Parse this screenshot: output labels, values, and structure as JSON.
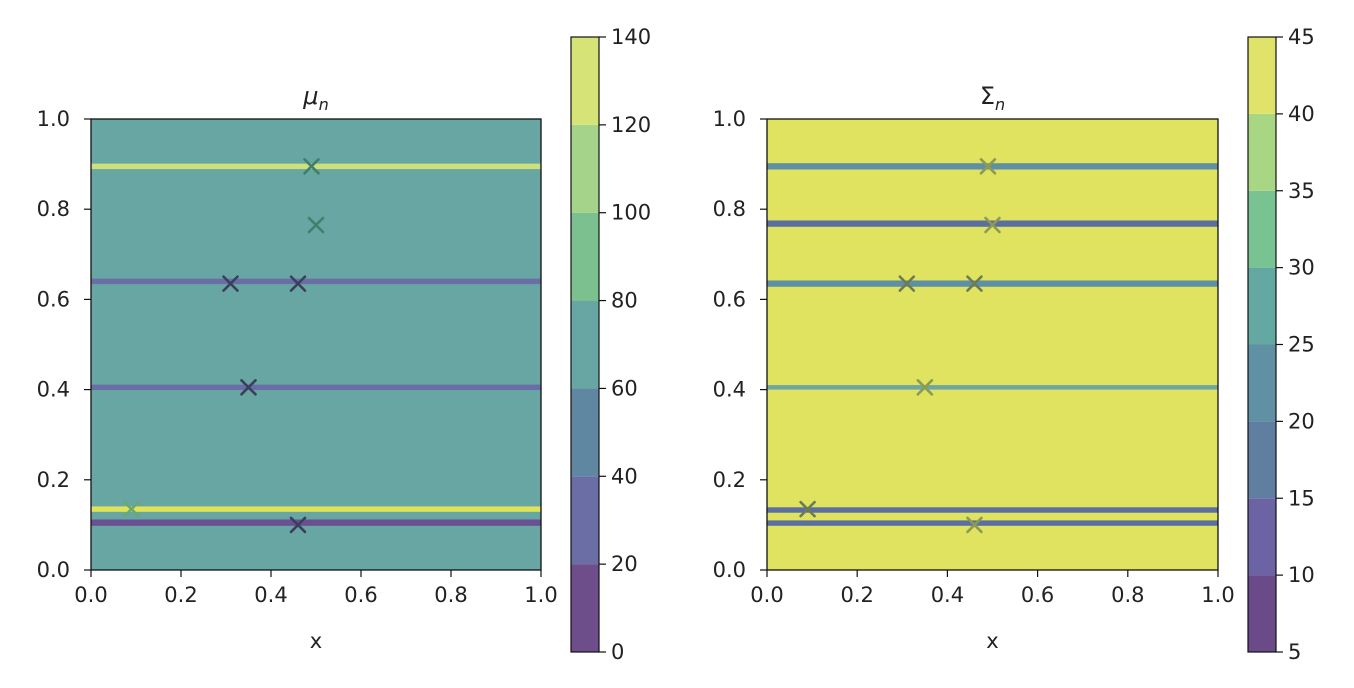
{
  "chart_data": [
    {
      "type": "heatmap",
      "title": "μ",
      "title_subscript": "n",
      "xlabel": "x",
      "ylabel": "",
      "xlim": [
        0.0,
        1.0
      ],
      "ylim": [
        0.0,
        1.0
      ],
      "xticks": [
        "0.0",
        "0.2",
        "0.4",
        "0.6",
        "0.8",
        "1.0"
      ],
      "yticks": [
        "0.0",
        "0.2",
        "0.4",
        "0.6",
        "0.8",
        "1.0"
      ],
      "grid": false,
      "background_color": "#67a6a2",
      "bands": [
        {
          "y_center": 0.895,
          "height": 0.012,
          "color": "#cfe07a"
        },
        {
          "y_center": 0.64,
          "height": 0.012,
          "color": "#6a6ea6"
        },
        {
          "y_center": 0.405,
          "height": 0.012,
          "color": "#6a6ea6"
        },
        {
          "y_center": 0.135,
          "height": 0.012,
          "color": "#e0e35a"
        },
        {
          "y_center": 0.105,
          "height": 0.014,
          "color": "#6a4f93"
        }
      ],
      "points": [
        {
          "x": 0.49,
          "y": 0.895,
          "color": "#3f7f6b"
        },
        {
          "x": 0.5,
          "y": 0.765,
          "color": "#3f7f6b"
        },
        {
          "x": 0.31,
          "y": 0.635,
          "color": "#3a3f5e"
        },
        {
          "x": 0.46,
          "y": 0.635,
          "color": "#3a3f5e"
        },
        {
          "x": 0.35,
          "y": 0.405,
          "color": "#3a3f5e"
        },
        {
          "x": 0.09,
          "y": 0.135,
          "color": "#6aa872"
        },
        {
          "x": 0.46,
          "y": 0.1,
          "color": "#3a3f5e"
        }
      ],
      "colorbar": {
        "ticks": [
          "0",
          "20",
          "40",
          "60",
          "80",
          "100",
          "120",
          "140"
        ],
        "levels": [
          0,
          20,
          40,
          60,
          80,
          100,
          120,
          140
        ],
        "colors": [
          "#6d4d8a",
          "#6b6ea4",
          "#5f87a1",
          "#67a6a2",
          "#7cc08f",
          "#a4d389",
          "#d5e377"
        ]
      }
    },
    {
      "type": "heatmap",
      "title": "Σ",
      "title_subscript": "n",
      "xlabel": "x",
      "ylabel": "",
      "xlim": [
        0.0,
        1.0
      ],
      "ylim": [
        0.0,
        1.0
      ],
      "xticks": [
        "0.0",
        "0.2",
        "0.4",
        "0.6",
        "0.8",
        "1.0"
      ],
      "yticks": [
        "0.0",
        "0.2",
        "0.4",
        "0.6",
        "0.8",
        "1.0"
      ],
      "grid": false,
      "background_color": "#e0e35f",
      "bands": [
        {
          "y_center": 0.895,
          "height": 0.014,
          "color": "#5f8fa4"
        },
        {
          "y_center": 0.768,
          "height": 0.014,
          "color": "#5a6ea0"
        },
        {
          "y_center": 0.635,
          "height": 0.014,
          "color": "#5f8fa4"
        },
        {
          "y_center": 0.405,
          "height": 0.01,
          "color": "#6fa6a2"
        },
        {
          "y_center": 0.133,
          "height": 0.012,
          "color": "#5a6ea0"
        },
        {
          "y_center": 0.104,
          "height": 0.012,
          "color": "#5a6ea0"
        }
      ],
      "points": [
        {
          "x": 0.49,
          "y": 0.895,
          "color": "#8c9a55"
        },
        {
          "x": 0.5,
          "y": 0.765,
          "color": "#8c9a55"
        },
        {
          "x": 0.31,
          "y": 0.635,
          "color": "#6c7a55"
        },
        {
          "x": 0.46,
          "y": 0.635,
          "color": "#6c7a55"
        },
        {
          "x": 0.35,
          "y": 0.405,
          "color": "#8c9a55"
        },
        {
          "x": 0.09,
          "y": 0.135,
          "color": "#6c7a55"
        },
        {
          "x": 0.46,
          "y": 0.1,
          "color": "#8c9a55"
        }
      ],
      "colorbar": {
        "ticks": [
          "5",
          "10",
          "15",
          "20",
          "25",
          "30",
          "35",
          "40",
          "45"
        ],
        "levels": [
          5,
          10,
          15,
          20,
          25,
          30,
          35,
          40,
          45
        ],
        "colors": [
          "#6b4a89",
          "#6b63a3",
          "#5f7ea0",
          "#5f90a3",
          "#63a8a1",
          "#79c292",
          "#a9d683",
          "#dfe36a"
        ]
      }
    }
  ]
}
